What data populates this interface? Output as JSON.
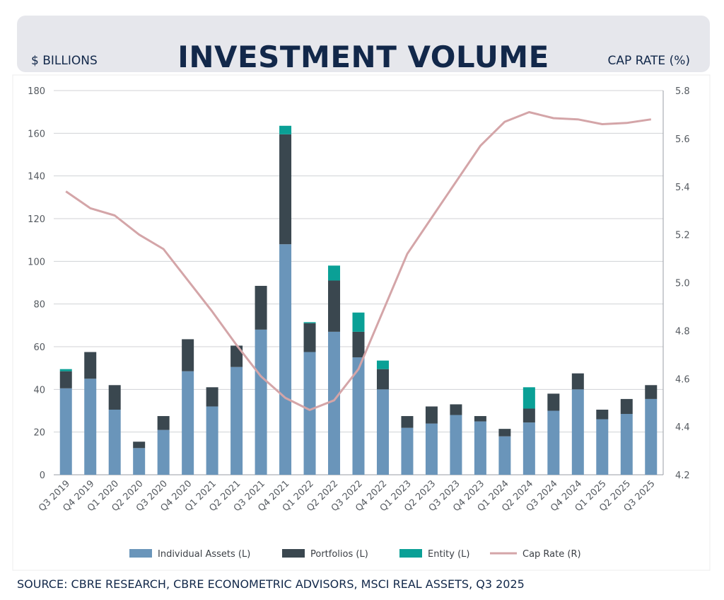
{
  "title": "INVESTMENT VOLUME",
  "left_axis_note": "$ BILLIONS",
  "right_axis_note": "CAP RATE (%)",
  "source": "SOURCE: CBRE RESEARCH, CBRE ECONOMETRIC ADVISORS, MSCI REAL ASSETS, Q3 2025",
  "colors": {
    "individual_assets": "#6a95ba",
    "portfolios": "#3a474f",
    "entity": "#0aa096",
    "cap_rate": "#d4a5a8",
    "title": "#12284a"
  },
  "chart_data": {
    "type": "bar",
    "stacked": true,
    "categories": [
      "Q3 2019",
      "Q4 2019",
      "Q1 2020",
      "Q2 2020",
      "Q3 2020",
      "Q4 2020",
      "Q1 2021",
      "Q2 2021",
      "Q3 2021",
      "Q4 2021",
      "Q1 2022",
      "Q2 2022",
      "Q3 2022",
      "Q4 2022",
      "Q1 2023",
      "Q2 2023",
      "Q3 2023",
      "Q4 2023",
      "Q1 2024",
      "Q2 2024",
      "Q3 2024",
      "Q4 2024",
      "Q1 2025",
      "Q2 2025",
      "Q3 2025"
    ],
    "series": [
      {
        "name": "Individual Assets (L)",
        "axis": "left",
        "values": [
          40.5,
          45,
          30.5,
          12.5,
          21,
          48.5,
          32,
          50.5,
          68,
          108,
          57.5,
          67,
          55,
          40,
          22,
          24,
          28,
          25,
          18,
          24.5,
          30,
          40,
          26,
          28.5,
          35.5
        ]
      },
      {
        "name": "Portfolios (L)",
        "axis": "left",
        "values": [
          8,
          12.5,
          11.5,
          3,
          6.5,
          15,
          9,
          10,
          20.5,
          51.5,
          13.5,
          24,
          12,
          9.5,
          5.5,
          8,
          5,
          2.5,
          3.5,
          6.5,
          8,
          7.5,
          4.5,
          7,
          6.5
        ]
      },
      {
        "name": "Entity (L)",
        "axis": "left",
        "values": [
          1,
          0,
          0,
          0,
          0,
          0,
          0,
          0,
          0,
          4,
          0.5,
          7,
          9,
          4,
          0,
          0,
          0,
          0,
          0,
          10,
          0,
          0,
          0,
          0,
          0
        ]
      },
      {
        "name": "Cap Rate (R)",
        "axis": "right",
        "type": "line",
        "values": [
          5.38,
          5.31,
          5.28,
          5.2,
          5.14,
          5.01,
          4.88,
          4.74,
          4.61,
          4.52,
          4.47,
          4.51,
          4.64,
          4.88,
          5.12,
          5.27,
          5.42,
          5.57,
          5.67,
          5.71,
          5.685,
          5.68,
          5.66,
          5.665,
          5.68
        ]
      }
    ],
    "ylim_left": [
      0,
      180
    ],
    "yticks_left": [
      0,
      20,
      40,
      60,
      80,
      100,
      120,
      140,
      160,
      180
    ],
    "ylim_right": [
      4.2,
      5.8
    ],
    "yticks_right": [
      "4.2",
      "4.4",
      "4.6",
      "4.8",
      "5.0",
      "5.2",
      "5.4",
      "5.6",
      "5.8"
    ],
    "legend_position": "bottom",
    "grid": true
  }
}
